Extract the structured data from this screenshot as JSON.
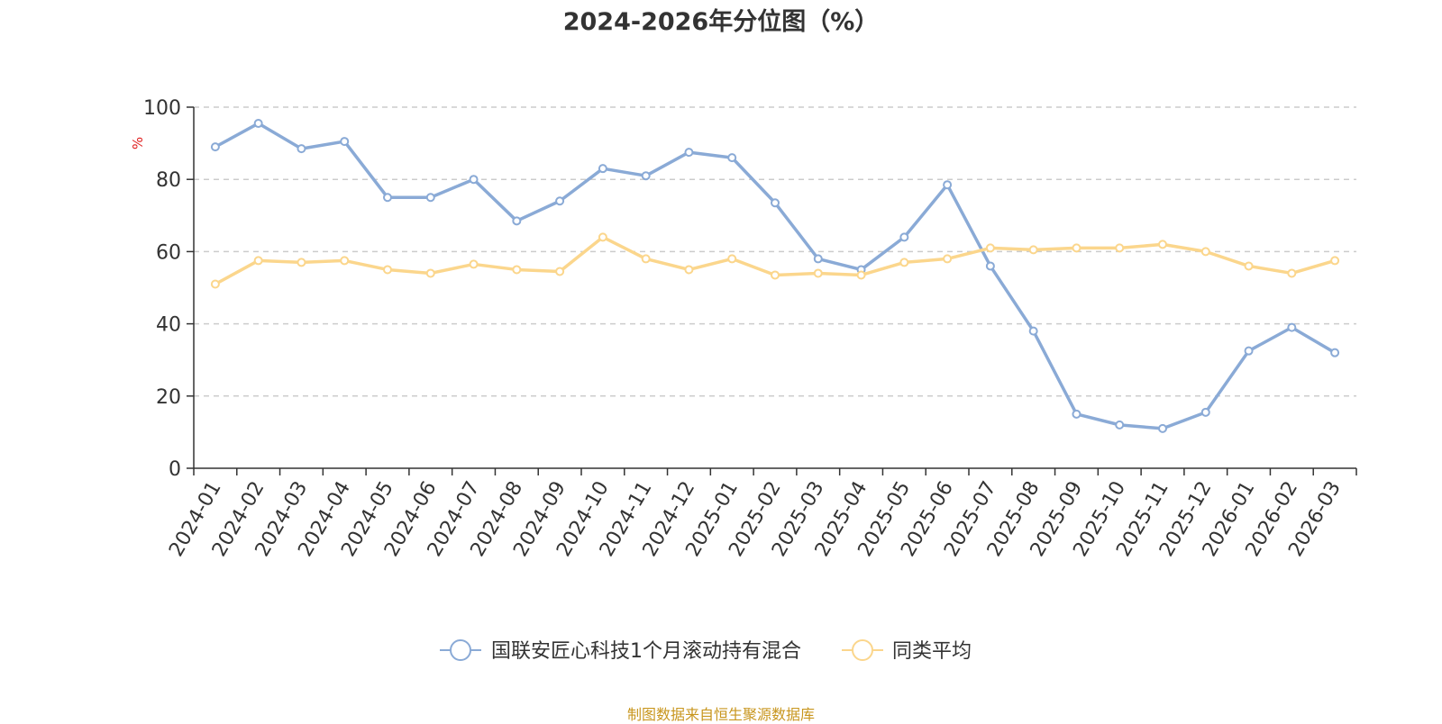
{
  "chart_data": {
    "type": "line",
    "title": "2024-2026年分位图（%）",
    "ylabel": "%",
    "ylim": [
      0,
      100
    ],
    "yticks": [
      0,
      20,
      40,
      60,
      80,
      100
    ],
    "grid": true,
    "legend_position": "bottom-center",
    "categories": [
      "2024-01",
      "2024-02",
      "2024-03",
      "2024-04",
      "2024-05",
      "2024-06",
      "2024-07",
      "2024-08",
      "2024-09",
      "2024-10",
      "2024-11",
      "2024-12",
      "2025-01",
      "2025-02",
      "2025-03",
      "2025-04",
      "2025-05",
      "2025-06",
      "2025-07",
      "2025-08",
      "2025-09",
      "2025-10",
      "2025-11",
      "2025-12",
      "2026-01",
      "2026-02",
      "2026-03"
    ],
    "series": [
      {
        "name": "国联安匠心科技1个月滚动持有混合",
        "color": "#8aaad6",
        "values": [
          89,
          95.5,
          88.5,
          90.5,
          75,
          75,
          80,
          68.5,
          74,
          83,
          81,
          87.5,
          86,
          73.5,
          58,
          55,
          64,
          78.5,
          56,
          38,
          15,
          12,
          11,
          15.5,
          32.5,
          39,
          32
        ]
      },
      {
        "name": "同类平均",
        "color": "#fbd68c",
        "values": [
          51,
          57.5,
          57,
          57.5,
          55,
          54,
          56.5,
          55,
          54.5,
          64,
          58,
          55,
          58,
          53.5,
          54,
          53.5,
          57,
          58,
          61,
          60.5,
          61,
          61,
          62,
          60,
          56,
          54,
          57.5
        ]
      }
    ]
  },
  "source_text": "制图数据来自恒生聚源数据库"
}
